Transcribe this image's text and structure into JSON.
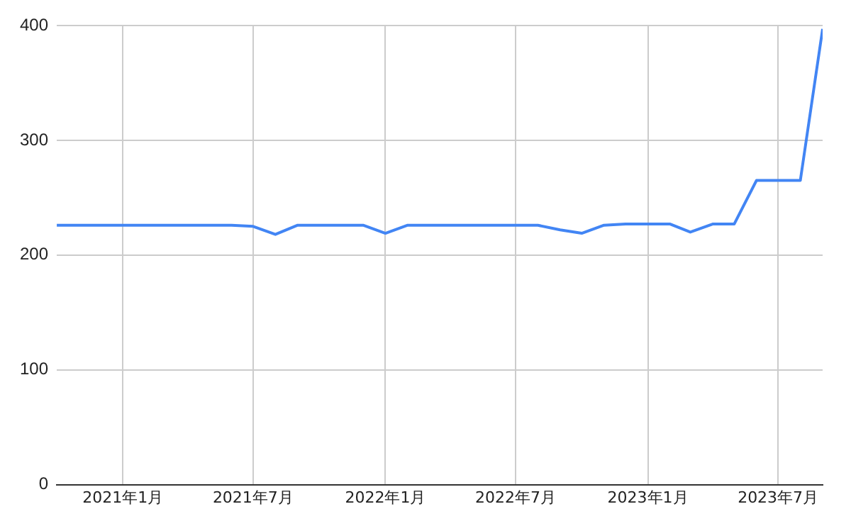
{
  "chart_data": {
    "type": "line",
    "x": [
      "2020-10",
      "2020-11",
      "2020-12",
      "2021-01",
      "2021-02",
      "2021-03",
      "2021-04",
      "2021-05",
      "2021-06",
      "2021-07",
      "2021-08",
      "2021-09",
      "2021-10",
      "2021-11",
      "2021-12",
      "2022-01",
      "2022-02",
      "2022-03",
      "2022-04",
      "2022-05",
      "2022-06",
      "2022-07",
      "2022-08",
      "2022-09",
      "2022-10",
      "2022-11",
      "2022-12",
      "2023-01",
      "2023-02",
      "2023-03",
      "2023-04",
      "2023-05",
      "2023-06",
      "2023-07",
      "2023-08",
      "2023-09"
    ],
    "series": [
      {
        "color": "#4285f4",
        "values": [
          226,
          226,
          226,
          226,
          226,
          226,
          226,
          226,
          226,
          225,
          218,
          226,
          226,
          226,
          226,
          219,
          226,
          226,
          226,
          226,
          226,
          226,
          226,
          222,
          219,
          226,
          227,
          227,
          227,
          220,
          227,
          227,
          265,
          265,
          265,
          397
        ]
      }
    ],
    "xlim": [
      "2020-10",
      "2023-09"
    ],
    "xticks": [
      {
        "value": "2021-01",
        "label": "2021年1月"
      },
      {
        "value": "2021-07",
        "label": "2021年7月"
      },
      {
        "value": "2022-01",
        "label": "2022年1月"
      },
      {
        "value": "2022-07",
        "label": "2022年7月"
      },
      {
        "value": "2023-01",
        "label": "2023年1月"
      },
      {
        "value": "2023-07",
        "label": "2023年7月"
      }
    ],
    "ylim": [
      0,
      400
    ],
    "yticks": [
      0,
      100,
      200,
      300,
      400
    ],
    "grid": true,
    "legend": false,
    "marker": "none",
    "line_style": "solid"
  }
}
